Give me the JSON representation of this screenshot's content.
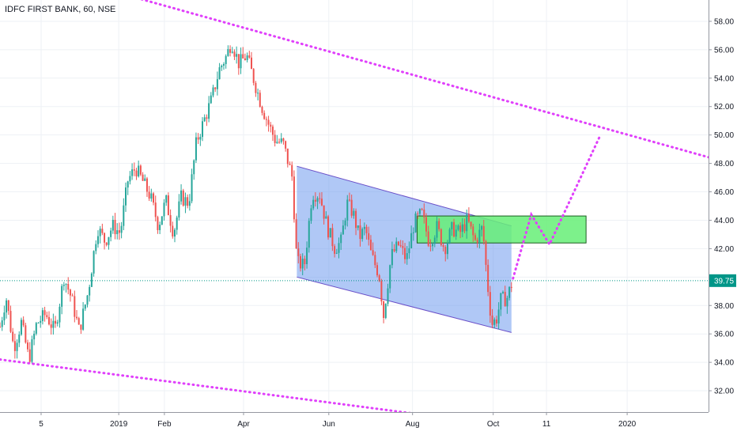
{
  "chart_data": {
    "type": "candlestick",
    "title": "IDFC FIRST BANK, 60, NSE",
    "ylim": [
      30.5,
      59.5
    ],
    "y_ticks": [
      32.0,
      34.0,
      36.0,
      38.0,
      40.0,
      42.0,
      44.0,
      46.0,
      48.0,
      50.0,
      52.0,
      54.0,
      56.0,
      58.0
    ],
    "y_tick_labels": [
      "32.00",
      "34.00",
      "36.00",
      "38.00",
      "40.00",
      "42.00",
      "44.00",
      "46.00",
      "48.00",
      "50.00",
      "52.00",
      "54.00",
      "56.00",
      "58.00"
    ],
    "x_ticks": [
      "5",
      "2019",
      "Feb",
      "Apr",
      "Jun",
      "Aug",
      "Oct",
      "11",
      "2020"
    ],
    "last_price": 39.75,
    "last_price_label": "39.75",
    "colors": {
      "up": "#26a69a",
      "down": "#ef5350",
      "trendline": "#e040fb",
      "channel_fill": "#6f9bee",
      "channel_border": "#6a4fc8",
      "zone_fill": "#66ee77",
      "price_line": "#009688",
      "axis_text": "#131722"
    },
    "price_path": [
      [
        0.0,
        36.5
      ],
      [
        0.2,
        38.6
      ],
      [
        0.45,
        35.0
      ],
      [
        0.7,
        36.8
      ],
      [
        0.95,
        34.2
      ],
      [
        1.2,
        36.7
      ],
      [
        1.5,
        37.4
      ],
      [
        1.8,
        36.2
      ],
      [
        2.1,
        40.0
      ],
      [
        2.35,
        38.5
      ],
      [
        2.6,
        36.2
      ],
      [
        2.9,
        39.0
      ],
      [
        3.2,
        43.5
      ],
      [
        3.45,
        42.5
      ],
      [
        3.7,
        43.6
      ],
      [
        3.95,
        43.1
      ],
      [
        4.2,
        46.8
      ],
      [
        4.45,
        47.7
      ],
      [
        4.7,
        46.7
      ],
      [
        4.95,
        45.6
      ],
      [
        5.2,
        43.6
      ],
      [
        5.45,
        45.4
      ],
      [
        5.7,
        43.1
      ],
      [
        5.95,
        45.6
      ],
      [
        6.2,
        45.2
      ],
      [
        6.45,
        49.5
      ],
      [
        6.7,
        51.0
      ],
      [
        6.95,
        52.5
      ],
      [
        7.2,
        54.6
      ],
      [
        7.45,
        55.6
      ],
      [
        7.6,
        56.6
      ],
      [
        7.85,
        55.0
      ],
      [
        8.1,
        55.6
      ],
      [
        8.35,
        53.8
      ],
      [
        8.6,
        52.0
      ],
      [
        8.85,
        50.6
      ],
      [
        9.05,
        49.6
      ],
      [
        9.3,
        49.4
      ],
      [
        9.6,
        47.0
      ],
      [
        9.75,
        41.0
      ],
      [
        10.0,
        40.8
      ],
      [
        10.25,
        45.9
      ],
      [
        10.5,
        45.8
      ],
      [
        10.75,
        43.5
      ],
      [
        11.0,
        42.0
      ],
      [
        11.2,
        42.5
      ],
      [
        11.4,
        45.2
      ],
      [
        11.6,
        44.5
      ],
      [
        11.8,
        42.8
      ],
      [
        12.0,
        43.4
      ],
      [
        12.2,
        41.5
      ],
      [
        12.45,
        40.2
      ],
      [
        12.6,
        37.3
      ],
      [
        12.85,
        41.5
      ],
      [
        13.1,
        42.3
      ],
      [
        13.35,
        41.2
      ],
      [
        13.6,
        43.8
      ],
      [
        13.85,
        44.5
      ],
      [
        14.1,
        42.4
      ],
      [
        14.35,
        43.5
      ],
      [
        14.6,
        42.0
      ],
      [
        14.85,
        43.4
      ],
      [
        15.1,
        43.1
      ],
      [
        15.35,
        44.0
      ],
      [
        15.6,
        42.5
      ],
      [
        15.85,
        43.5
      ],
      [
        16.0,
        39.8
      ],
      [
        16.15,
        36.7
      ],
      [
        16.3,
        37.0
      ],
      [
        16.45,
        38.4
      ],
      [
        16.65,
        38.5
      ],
      [
        16.85,
        39.8
      ]
    ],
    "annotations": {
      "upper_trendline": [
        [
          3.9,
          60.0
        ],
        [
          24.0,
          48.0
        ]
      ],
      "lower_trendline": [
        [
          0.0,
          34.2
        ],
        [
          15.0,
          30.0
        ]
      ],
      "channel": [
        [
          9.75,
          47.8
        ],
        [
          16.8,
          43.6
        ],
        [
          16.8,
          36.1
        ],
        [
          9.75,
          40.0
        ]
      ],
      "resistance_zone": {
        "x0": 13.7,
        "x1": 19.25,
        "y0": 42.4,
        "y1": 44.3
      },
      "projected_path": [
        [
          16.85,
          39.9
        ],
        [
          17.45,
          44.4
        ],
        [
          18.05,
          42.3
        ],
        [
          19.7,
          49.9
        ]
      ]
    }
  }
}
